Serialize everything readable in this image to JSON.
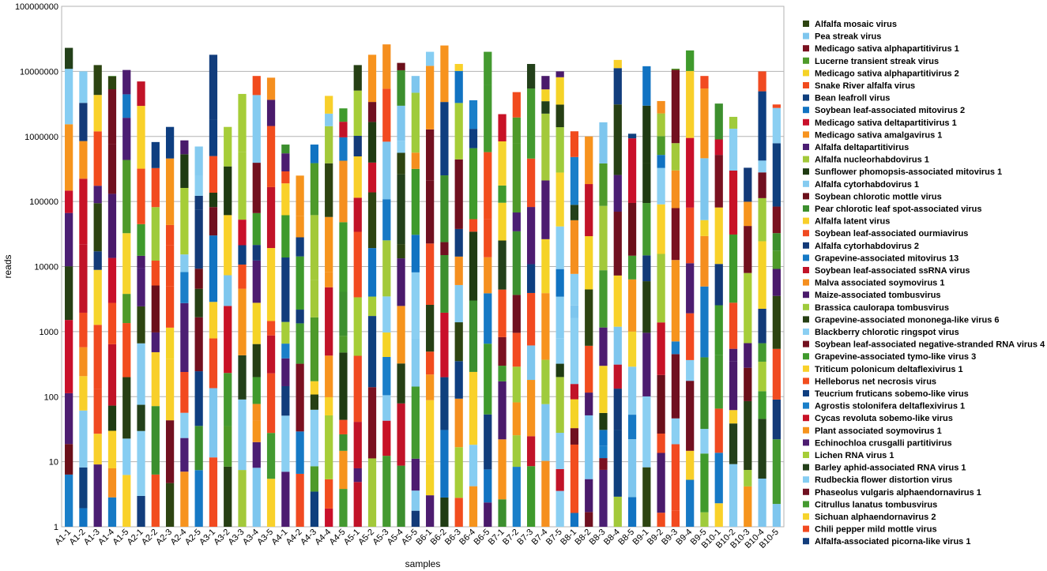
{
  "chart_data": {
    "type": "bar",
    "stacked": true,
    "scale": "log",
    "xlabel": "samples",
    "ylabel": "reads",
    "ylim": [
      1,
      100000000
    ],
    "yticks": [
      "1",
      "10",
      "100",
      "1000",
      "10000",
      "100000",
      "1000000",
      "10000000",
      "100000000"
    ],
    "grid": true,
    "legend_position": "right",
    "categories": [
      "A1-1",
      "A1-2",
      "A1-3",
      "A1-4",
      "A1-5",
      "A2-1",
      "A2-2",
      "A2-3",
      "A2-4",
      "A2-5",
      "A3-1",
      "A3-2",
      "A3-3",
      "A3-4",
      "A3-5",
      "A4-1",
      "A4-2",
      "A4-3",
      "A4-4",
      "A4-5",
      "A5-1",
      "A5-2",
      "A5-3",
      "A5-4",
      "A5-5",
      "B6-1",
      "B6-2",
      "B6-3",
      "B6-4",
      "B6-5",
      "B7-1",
      "B7-2",
      "B7-3",
      "B7-4",
      "B7-5",
      "B8-1",
      "B8-2",
      "B8-3",
      "B8-4",
      "B8-5",
      "B9-1",
      "B9-2",
      "B9-3",
      "B9-4",
      "B9-5",
      "B10-1",
      "B10-2",
      "B10-3",
      "B10-4",
      "B10-5"
    ],
    "totals": [
      23000000,
      10000000,
      12500000,
      8500000,
      10500000,
      7000000,
      820000,
      1400000,
      870000,
      700000,
      18000000,
      1400000,
      4500000,
      8500000,
      8000000,
      750000,
      250000,
      750000,
      4200000,
      2700000,
      12500000,
      18000000,
      26000000,
      13500000,
      8500000,
      20000000,
      25000000,
      13000000,
      3600000,
      20000000,
      2200000,
      4800000,
      13000000,
      8500000,
      10000000,
      1200000,
      1000000,
      1650000,
      15000000,
      1100000,
      12000000,
      3500000,
      11000000,
      21000000,
      8500000,
      3200000,
      2000000,
      330000,
      10000000,
      3100000
    ],
    "series": [
      {
        "name": "Alfalfa mosaic virus",
        "color": "#2d4411"
      },
      {
        "name": "Pea streak virus",
        "color": "#7ec6ee"
      },
      {
        "name": "Medicago sativa alphapartitivirus 1",
        "color": "#7a1120"
      },
      {
        "name": "Lucerne transient streak virus",
        "color": "#4e9a2a"
      },
      {
        "name": "Medicago sativa alphapartitivirus 2",
        "color": "#f5d327"
      },
      {
        "name": "Snake River alfalfa virus",
        "color": "#f14b1d"
      },
      {
        "name": "Bean leafroll virus",
        "color": "#0f3f7d"
      },
      {
        "name": "Soybean leaf-associated mitovirus 2",
        "color": "#1173c2"
      },
      {
        "name": "Medicago sativa deltapartitivirus 1",
        "color": "#c9102a"
      },
      {
        "name": "Medicago sativa amalgavirus 1",
        "color": "#f7931e"
      },
      {
        "name": "Alfalfa deltapartitivirus",
        "color": "#4b1e73"
      },
      {
        "name": "Alfalfa nucleorhabdovirus 1",
        "color": "#a3c93a"
      },
      {
        "name": "Sunflower phomopsis-associated mitovirus 1",
        "color": "#1f3b12"
      },
      {
        "name": "Alfalfa cytorhabdovirus 1",
        "color": "#85cbf0"
      },
      {
        "name": "Soybean chlorotic mottle virus",
        "color": "#6b0f1a"
      },
      {
        "name": "Pear chlorotic leaf spot-associated virus",
        "color": "#3c8f2e"
      },
      {
        "name": "Alfalfa latent virus",
        "color": "#f8cf2a"
      },
      {
        "name": "Soybean leaf-associated ourmiavirus",
        "color": "#f04a21"
      },
      {
        "name": "Alfalfa cytorhabdovirus 2",
        "color": "#133a78"
      },
      {
        "name": "Grapevine-associated mitovirus 13",
        "color": "#1679c5"
      },
      {
        "name": "Soybean leaf-associated ssRNA virus",
        "color": "#c11328"
      },
      {
        "name": "Malva associated soymovirus 1",
        "color": "#f58f1f"
      },
      {
        "name": "Maize-associated tombusvirus",
        "color": "#4a1a6b"
      },
      {
        "name": "Brassica caulorapa tombusvirus",
        "color": "#9fcb3c"
      },
      {
        "name": "Grapevine-associated mononega-like virus 6",
        "color": "#263f14"
      },
      {
        "name": "Blackberry chlorotic ringspot virus",
        "color": "#8bcff2"
      },
      {
        "name": "Soybean leaf-associated negative-stranded RNA virus 4",
        "color": "#72101f"
      },
      {
        "name": "Grapevine-associated tymo-like virus 3",
        "color": "#3f9a2c"
      },
      {
        "name": "Triticum polonicum deltaflexivirus 1",
        "color": "#f9d12a"
      },
      {
        "name": "Helleborus net necrosis virus",
        "color": "#f24d1e"
      },
      {
        "name": "Teucrium fruticans sobemo-like virus",
        "color": "#0e3e80"
      },
      {
        "name": "Agrostis stolonifera deltaflexivirus 1",
        "color": "#1a7fc9"
      },
      {
        "name": "Cycas revoluta sobemo-like virus",
        "color": "#c81226"
      },
      {
        "name": "Plant associated soymovirus 1",
        "color": "#f6941d"
      },
      {
        "name": "Echinochloa crusgalli partitivirus",
        "color": "#4d1c70"
      },
      {
        "name": "Lichen RNA virus 1",
        "color": "#a6cd38"
      },
      {
        "name": "Barley aphid-associated RNA virus 1",
        "color": "#23401a"
      },
      {
        "name": "Rudbeckia flower distortion virus",
        "color": "#86cdf2"
      },
      {
        "name": "Phaseolus vulgaris alphaendornavirus 1",
        "color": "#701020"
      },
      {
        "name": "Citrullus lanatus tombusvirus",
        "color": "#449a30"
      },
      {
        "name": "Sichuan alphaendornavirus 2",
        "color": "#f6d42d"
      },
      {
        "name": "Chili pepper mild mottle virus",
        "color": "#f24a20"
      },
      {
        "name": "Alfalfa-associated picorna-like virus 1",
        "color": "#123d7c"
      }
    ]
  }
}
